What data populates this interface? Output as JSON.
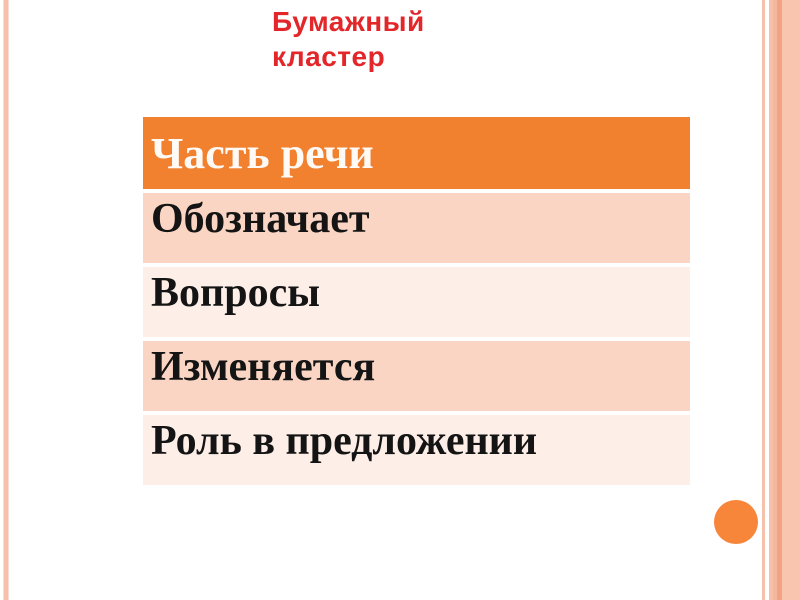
{
  "title": {
    "line1": "Бумажный",
    "line2": "кластер"
  },
  "table": {
    "header": "Часть речи",
    "rows": [
      {
        "label": "Обозначает"
      },
      {
        "label": "Вопросы"
      },
      {
        "label": "Изменяется"
      },
      {
        "label": "Роль в предложении"
      }
    ]
  },
  "colors": {
    "title_red": "#e3262a",
    "header_orange": "#f1812f",
    "header_text": "#fffaf5",
    "row_text": "#141414",
    "row_band_dark": "#fbd5c4",
    "row_band_light": "#fdefe8",
    "circle_orange": "#f7853a",
    "edge_pink_light": "#fbddd2",
    "edge_pink": "#f6c0ab",
    "edge_pink_mid": "#f5b89e",
    "edge_salmon_dark": "#f0a483",
    "edge_salmon": "#f9c5af"
  }
}
